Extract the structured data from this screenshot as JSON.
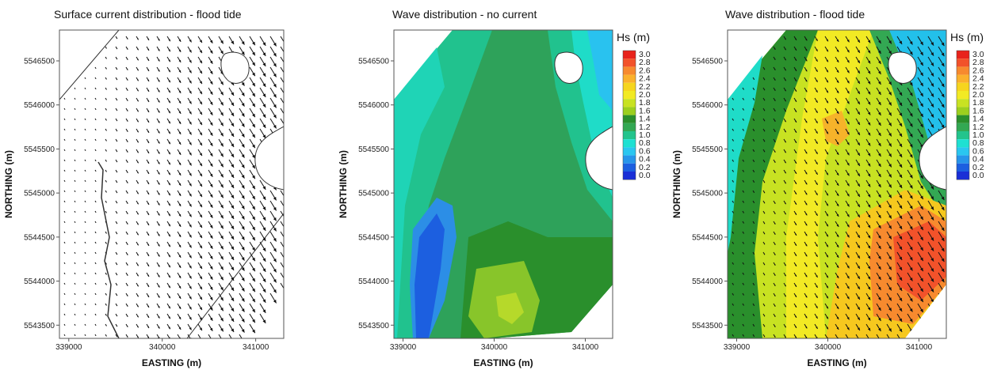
{
  "panels": [
    {
      "title": "Surface current distribution - flood tide"
    },
    {
      "title": "Wave distribution - no current"
    },
    {
      "title": "Wave distribution - flood tide"
    }
  ],
  "legend": {
    "title": "Hs (m)",
    "levels": [
      "3.0",
      "2.8",
      "2.6",
      "2.4",
      "2.2",
      "2.0",
      "1.8",
      "1.6",
      "1.4",
      "1.2",
      "1.0",
      "0.8",
      "0.6",
      "0.4",
      "0.2",
      "0.0"
    ],
    "colors": [
      "#e8231c",
      "#f2522a",
      "#f78a2e",
      "#fbb12c",
      "#f6d51e",
      "#f2ea24",
      "#c8e222",
      "#9ccf1e",
      "#2a8f2c",
      "#33a853",
      "#23c48c",
      "#1ee0d2",
      "#2ac6f0",
      "#2795ea",
      "#1c5fe0",
      "#1a2fd6"
    ]
  },
  "chart_data": [
    {
      "type": "vector-field",
      "title": "Surface current distribution - flood tide",
      "xlabel": "EASTING (m)",
      "ylabel": "NORTHING (m)",
      "xlim": [
        338900,
        341300
      ],
      "ylim": [
        5543350,
        5546850
      ],
      "xticks": [
        "339000",
        "340000",
        "341000"
      ],
      "yticks": [
        "5543500",
        "5544000",
        "5544500",
        "5545000",
        "5545500",
        "5546000",
        "5546500"
      ]
    },
    {
      "type": "heatmap",
      "title": "Wave distribution - no current",
      "xlabel": "EASTING (m)",
      "ylabel": "NORTHING (m)",
      "xlim": [
        338900,
        341300
      ],
      "ylim": [
        5543350,
        5546850
      ],
      "xticks": [
        "339000",
        "340000",
        "341000"
      ],
      "yticks": [
        "5543500",
        "5544000",
        "5544500",
        "5545000",
        "5545500",
        "5546000",
        "5546500"
      ],
      "colorbar": "Hs (m)",
      "value_range": [
        0.0,
        3.0
      ]
    },
    {
      "type": "heatmap",
      "title": "Wave distribution - flood tide",
      "xlabel": "EASTING (m)",
      "ylabel": "NORTHING (m)",
      "xlim": [
        338900,
        341300
      ],
      "ylim": [
        5543350,
        5546850
      ],
      "xticks": [
        "339000",
        "340000",
        "341000"
      ],
      "yticks": [
        "5543500",
        "5544000",
        "5544500",
        "5545000",
        "5545500",
        "5546000",
        "5546500"
      ],
      "colorbar": "Hs (m)",
      "value_range": [
        0.0,
        3.0
      ]
    }
  ]
}
